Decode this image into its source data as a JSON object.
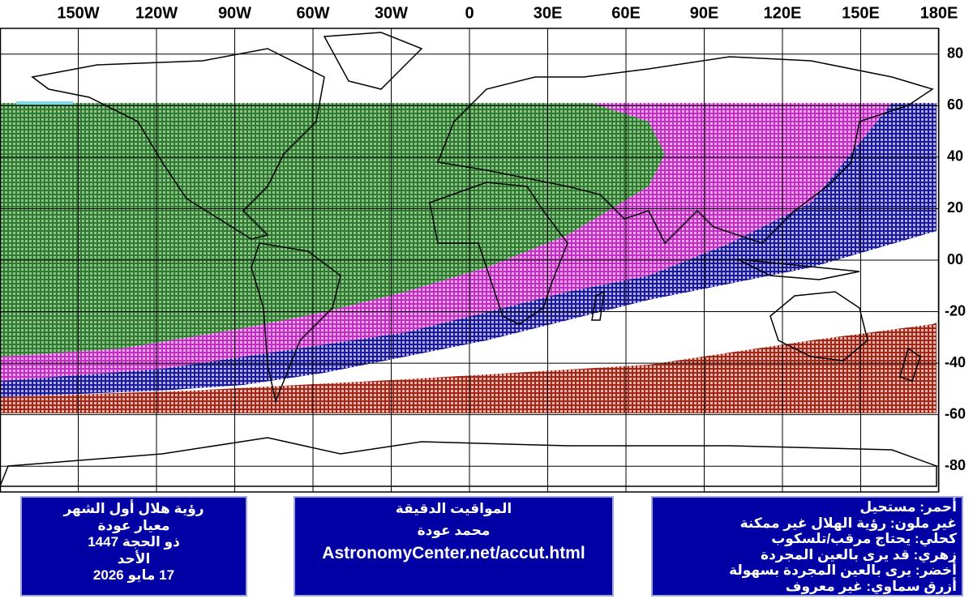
{
  "map": {
    "lon_ticks": [
      {
        "value": -150,
        "label": "150W"
      },
      {
        "value": -120,
        "label": "120W"
      },
      {
        "value": -90,
        "label": "90W"
      },
      {
        "value": -60,
        "label": "60W"
      },
      {
        "value": -30,
        "label": "30W"
      },
      0,
      {
        "value": 30,
        "label": "30E"
      },
      {
        "value": 60,
        "label": "60E"
      },
      {
        "value": 90,
        "label": "90E"
      },
      {
        "value": 120,
        "label": "120E"
      },
      {
        "value": 150,
        "label": "150E"
      },
      {
        "value": 180,
        "label": "180E"
      }
    ],
    "lat_ticks": [
      80,
      60,
      40,
      20,
      {
        "value": 0,
        "label": "00"
      },
      -20,
      -40,
      -60,
      -80
    ],
    "xlim": [
      -180,
      180
    ],
    "ylim": [
      -90,
      90
    ]
  },
  "info_box": [
    "رؤية هلال أول الشهر",
    "معيار عودة",
    "ذو الحجة 1447",
    "الأحد",
    "17 مايو 2026"
  ],
  "credit_box": [
    "المواقيت الدقيقة",
    "محمد عودة",
    "AstronomyCenter.net/accut.html"
  ],
  "legend_box": [
    "أحمر: مستحيل",
    "غير ملون: رؤية الهلال غير ممكنة",
    "كحلي: يحتاج مرقب/تلسكوب",
    "زهري: قد يرى بالعين المجردة",
    "أخضر: يرى بالعين المجردة بسهولة",
    "أزرق سماوي: غير معروف"
  ]
}
